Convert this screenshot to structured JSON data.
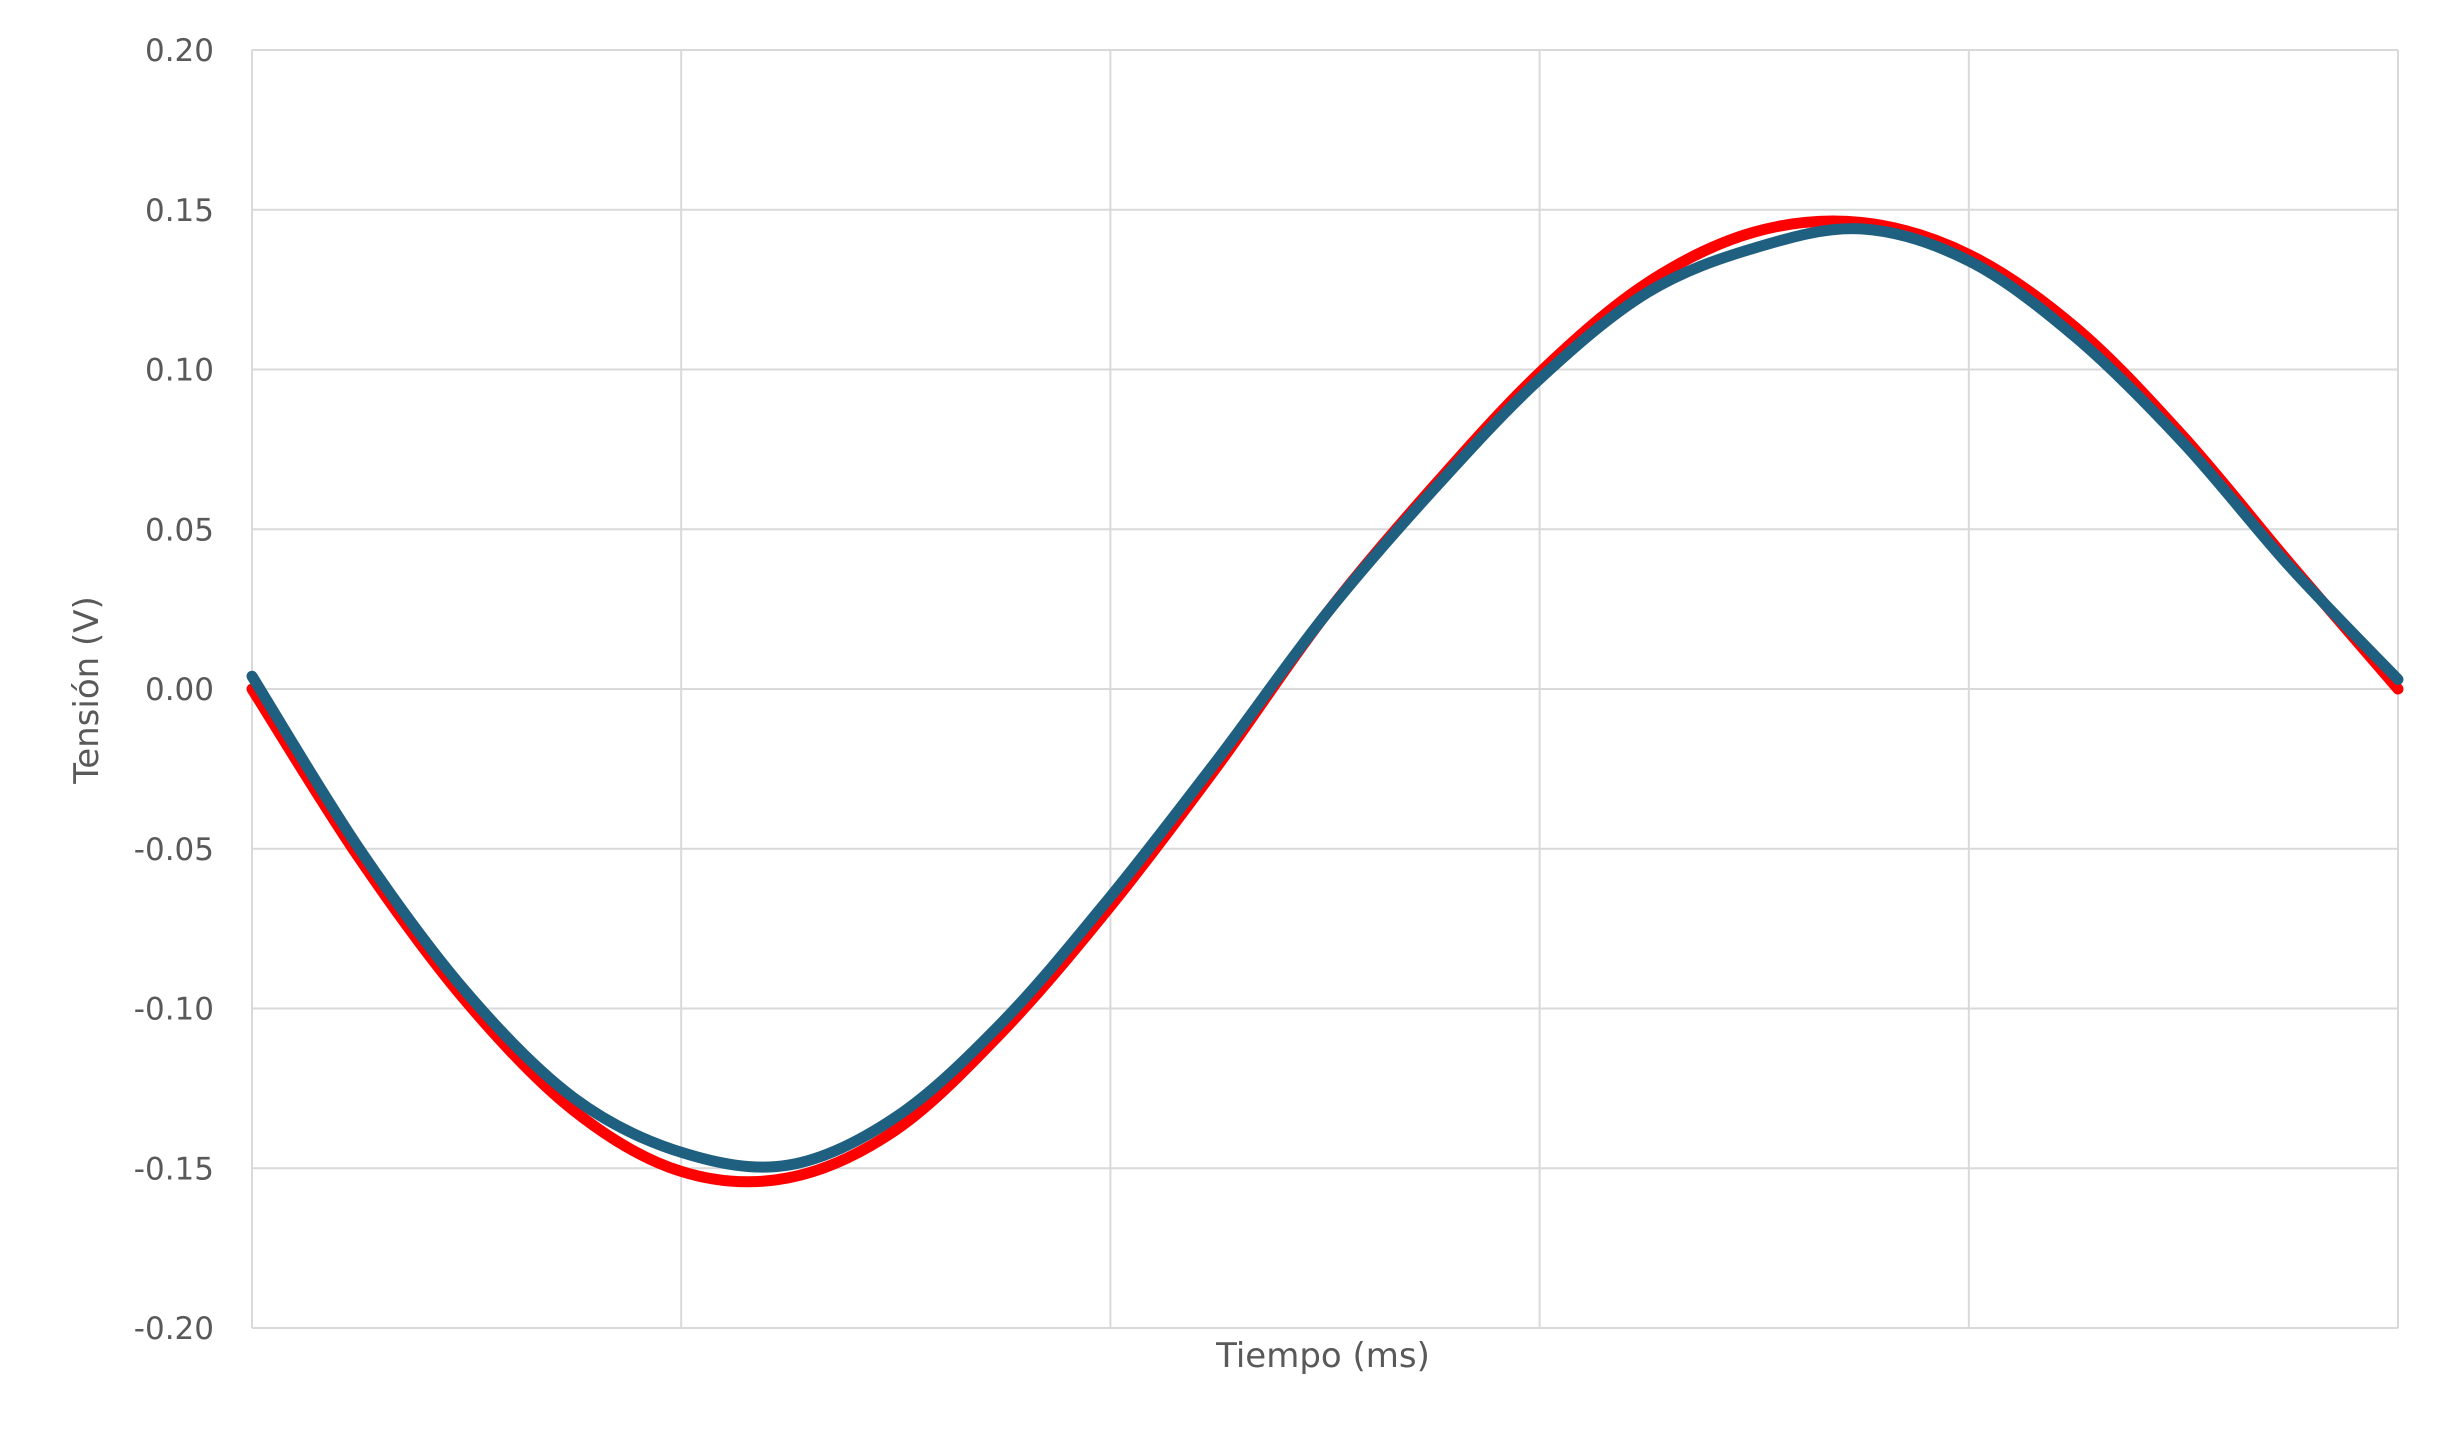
{
  "chart_data": {
    "type": "line",
    "xlabel": "Tiempo (ms)",
    "ylabel": "Tensión (V)",
    "ylim": [
      -0.2,
      0.2
    ],
    "yticks": [
      "0.20",
      "0.15",
      "0.10",
      "0.05",
      "0.00",
      "-0.05",
      "-0.10",
      "-0.15",
      "-0.20"
    ],
    "xlim": [
      0,
      10
    ],
    "x_gridlines": [
      0,
      2,
      4,
      6,
      8,
      10
    ],
    "x_tick_labels_shown": false,
    "grid": true,
    "legend": "none",
    "series": [
      {
        "color": "#ff0000",
        "x": [
          0,
          0.5,
          1,
          1.5,
          2,
          2.5,
          3,
          3.5,
          4,
          4.5,
          5,
          5.5,
          6,
          6.5,
          7,
          7.5,
          8,
          8.5,
          9,
          9.5,
          10
        ],
        "y": [
          0.0,
          -0.053,
          -0.098,
          -0.132,
          -0.151,
          -0.153,
          -0.138,
          -0.107,
          -0.068,
          -0.024,
          0.023,
          0.063,
          0.099,
          0.127,
          0.143,
          0.146,
          0.136,
          0.113,
          0.079,
          0.039,
          0.0
        ]
      },
      {
        "color": "#1f5f7f",
        "x": [
          0,
          0.5,
          1,
          1.5,
          2,
          2.5,
          3,
          3.5,
          4,
          4.5,
          5,
          5.5,
          6,
          6.5,
          7,
          7.5,
          8,
          8.5,
          9,
          9.5,
          10
        ],
        "y": [
          0.004,
          -0.05,
          -0.095,
          -0.128,
          -0.145,
          -0.149,
          -0.134,
          -0.104,
          -0.065,
          -0.022,
          0.023,
          0.062,
          0.097,
          0.124,
          0.138,
          0.144,
          0.134,
          0.11,
          0.077,
          0.038,
          0.003
        ]
      }
    ]
  }
}
